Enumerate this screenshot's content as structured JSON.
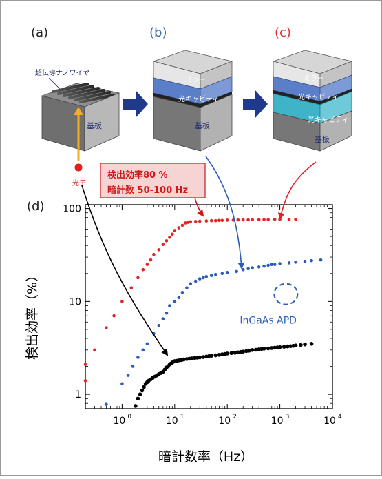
{
  "panels": {
    "a": {
      "label": "(a)",
      "label_color": "#222222",
      "nanowire_label": "超伝導ナノワイヤ",
      "substrate_label": "基板",
      "photon_label": "光子",
      "photon_color": "#e02020",
      "arrow_color": "#f0b020"
    },
    "b": {
      "label": "(b)",
      "label_color": "#3b68b0",
      "mirror_label": "ミラー",
      "cavity_label": "光キャビティ",
      "substrate_label": "基板"
    },
    "c": {
      "label": "(c)",
      "label_color": "#e03030",
      "mirror_label": "ミラー",
      "cavity_label_1": "光キャビティ",
      "cavity_label_2": "光キャビティ",
      "substrate_label": "基板"
    },
    "d": {
      "label": "(d)"
    }
  },
  "callout": {
    "line1": "検出効率80 %",
    "line2": "暗計数 50-100 Hz",
    "text_color": "#d01818",
    "fill": "#f7d4d4"
  },
  "colors": {
    "navy_arrow": "#1f3a8a",
    "red_series": "#e02525",
    "blue_series": "#2b5cb8",
    "black_series": "#000000"
  },
  "chart_data": {
    "type": "scatter",
    "title": "",
    "xlabel": "暗計数率（Hz）",
    "ylabel": "検出効率（%）",
    "xscale": "log",
    "yscale": "log",
    "xlim": [
      0.2,
      10000
    ],
    "ylim": [
      0.7,
      110
    ],
    "xticks": [
      1,
      10,
      100,
      1000,
      10000
    ],
    "xtick_labels_base": [
      "10",
      "10",
      "10",
      "10",
      "10"
    ],
    "xtick_labels_exp": [
      "0",
      "1",
      "2",
      "3",
      "4"
    ],
    "yticks": [
      1,
      10,
      100
    ],
    "ytick_labels": [
      "1",
      "10",
      "100"
    ],
    "grid": false,
    "annotation": {
      "text": "InGaAs APD",
      "x": 1300,
      "y": 12,
      "color": "#2b5cb8"
    },
    "series": [
      {
        "color": "#e02525",
        "x": [
          0.2,
          0.2,
          0.3,
          0.5,
          0.7,
          1.0,
          1.5,
          2.0,
          2.5,
          3.0,
          3.5,
          4.0,
          5.0,
          6.0,
          7.0,
          8.0,
          9.0,
          10.0,
          12.0,
          14.0,
          16.0,
          18.0,
          20.0,
          25.0,
          30.0,
          40.0,
          50.0,
          60.0,
          70.0,
          80.0,
          100.0,
          130.0,
          160.0,
          200.0,
          250.0,
          300.0,
          400.0,
          500.0,
          600.0,
          800.0,
          1000.0,
          1500.0,
          2000.0
        ],
        "y": [
          1.4,
          2.1,
          3.0,
          5.2,
          7.0,
          10.0,
          14.0,
          18.0,
          22.0,
          25.0,
          28.0,
          32.0,
          36.0,
          41.0,
          45.0,
          49.0,
          53.0,
          58.0,
          62.0,
          66.0,
          70.0,
          71.0,
          72.0,
          72.5,
          73.0,
          73.5,
          74.0,
          74.0,
          74.5,
          74.5,
          75.0,
          75.0,
          75.5,
          75.5,
          75.5,
          76.0,
          76.0,
          76.0,
          76.0,
          76.5,
          76.5,
          76.5,
          76.5
        ]
      },
      {
        "color": "#2b5cb8",
        "x": [
          0.5,
          1.0,
          1.3,
          1.6,
          2.0,
          2.5,
          3.0,
          4.0,
          5.0,
          6.0,
          7.0,
          8.0,
          10.0,
          12.0,
          14.0,
          17.0,
          20.0,
          25.0,
          30.0,
          35.0,
          40.0,
          50.0,
          60.0,
          80.0,
          100.0,
          150.0,
          200.0,
          250.0,
          300.0,
          400.0,
          500.0,
          600.0,
          700.0,
          800.0,
          1000.0,
          1500.0,
          2000.0,
          3000.0,
          4000.0,
          6000.0
        ],
        "y": [
          0.78,
          1.3,
          1.6,
          2.0,
          2.5,
          3.0,
          3.5,
          4.5,
          5.5,
          6.5,
          7.5,
          9.0,
          10.0,
          11.0,
          12.5,
          14.0,
          15.5,
          16.5,
          17.5,
          18.0,
          18.5,
          19.0,
          19.5,
          20.0,
          20.5,
          21.0,
          22.0,
          22.5,
          23.0,
          23.5,
          24.0,
          24.5,
          25.0,
          25.0,
          25.5,
          26.0,
          26.5,
          27.0,
          27.5,
          28.0
        ]
      },
      {
        "color": "#000000",
        "x": [
          1.8,
          2.0,
          2.2,
          2.4,
          2.6,
          2.8,
          3.0,
          3.2,
          3.5,
          3.8,
          4.2,
          4.6,
          5.0,
          5.5,
          6.0,
          6.5,
          7.0,
          7.5,
          8.0,
          8.5,
          9.0,
          9.5,
          10.0,
          11.0,
          12.0,
          13.0,
          14.0,
          15.0,
          17.0,
          19.0,
          21.0,
          24.0,
          27.0,
          30.0,
          35.0,
          40.0,
          45.0,
          50.0,
          60.0,
          70.0,
          80.0,
          90.0,
          100.0,
          120.0,
          140.0,
          160.0,
          180.0,
          200.0,
          230.0,
          260.0,
          300.0,
          350.0,
          400.0,
          450.0,
          500.0,
          600.0,
          700.0,
          800.0,
          900.0,
          1000.0,
          1200.0,
          1400.0,
          1600.0,
          1800.0,
          2000.0,
          2500.0,
          3000.0,
          4000.0
        ],
        "y": [
          0.75,
          0.9,
          1.0,
          1.1,
          1.2,
          1.3,
          1.35,
          1.4,
          1.45,
          1.5,
          1.55,
          1.6,
          1.65,
          1.7,
          1.75,
          1.85,
          1.95,
          2.0,
          2.1,
          2.15,
          2.2,
          2.25,
          2.28,
          2.3,
          2.32,
          2.34,
          2.36,
          2.38,
          2.4,
          2.42,
          2.44,
          2.46,
          2.48,
          2.5,
          2.52,
          2.55,
          2.58,
          2.6,
          2.63,
          2.66,
          2.7,
          2.72,
          2.75,
          2.78,
          2.8,
          2.83,
          2.86,
          2.88,
          2.92,
          2.95,
          3.0,
          3.02,
          3.05,
          3.08,
          3.1,
          3.12,
          3.15,
          3.18,
          3.2,
          3.22,
          3.25,
          3.28,
          3.3,
          3.33,
          3.36,
          3.4,
          3.45,
          3.5
        ]
      }
    ]
  }
}
